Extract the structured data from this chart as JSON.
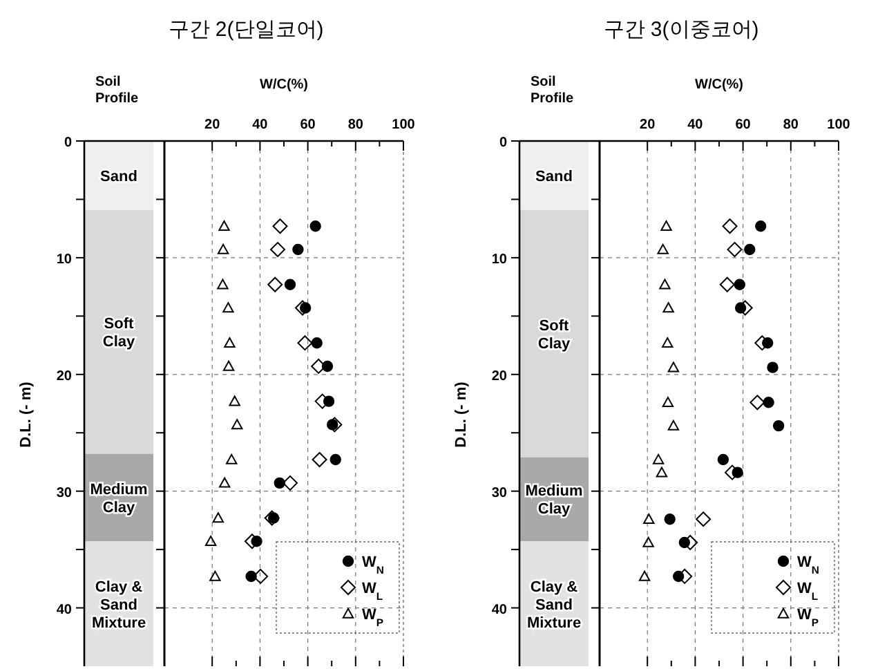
{
  "chart_data": [
    {
      "type": "bar",
      "stacked": true,
      "xlabel": "Soil Profile",
      "ylabel": "D.L. (- m)",
      "categories": [
        null
      ],
      "ylim": [
        45,
        0
      ],
      "yticks": [
        0,
        {
          "value": 5,
          "label": null
        },
        10,
        {
          "value": 15,
          "label": null
        },
        20,
        {
          "value": 25,
          "label": null
        },
        30,
        {
          "value": 35,
          "label": null
        },
        40
      ],
      "tick_labels": "y",
      "series": [
        {
          "name": "Sand",
          "color": "#efefef",
          "values": [
            5.9
          ]
        },
        {
          "name": "Soft Clay",
          "color": "#d9d9d9",
          "values": [
            20.9
          ]
        },
        {
          "name": "Medium Clay",
          "color": "#a9a9a9",
          "values": [
            7.5
          ]
        },
        {
          "name": "Clay & Sand Mixture",
          "color": "#e2e2e2",
          "values": [
            10.7
          ]
        }
      ]
    },
    {
      "type": "scatter",
      "title": "구간 2(단일코어)",
      "xlabel": "W/C(%)",
      "xlim": [
        0,
        100
      ],
      "xticks": [
        20,
        {
          "value": 30,
          "label": null
        },
        40,
        {
          "value": 50,
          "label": null
        },
        60,
        {
          "value": 70,
          "label": null
        },
        80,
        {
          "value": 90,
          "label": null
        },
        100
      ],
      "ylim": [
        45,
        0
      ],
      "yticks": [
        0,
        {
          "value": 5,
          "label": null
        },
        10,
        {
          "value": 15,
          "label": null
        },
        20,
        {
          "value": 25,
          "label": null
        },
        30,
        {
          "value": 35,
          "label": null
        },
        40
      ],
      "tick_labels": "x",
      "grid": true,
      "legend": "bottom right",
      "series": [
        {
          "name": "W$_{N}$",
          "color": "#000000",
          "marker": "circle",
          "x": [
            63.2,
            55.9,
            52.6,
            59.0,
            63.8,
            68.2,
            68.8,
            70.3,
            71.6,
            48.2,
            45.7,
            38.6,
            36.3
          ],
          "values": [
            7.3,
            9.3,
            12.3,
            14.3,
            17.3,
            19.3,
            22.3,
            24.3,
            27.3,
            29.3,
            32.3,
            34.3,
            37.3
          ]
        },
        {
          "name": "W$_{L}$",
          "color": "#000000",
          "marker": "diamond",
          "x": [
            48.4,
            47.4,
            46.3,
            57.8,
            58.8,
            64.5,
            66.1,
            71.2,
            64.9,
            52.6,
            45.0,
            36.7,
            40.2
          ],
          "values": [
            7.3,
            9.3,
            12.3,
            14.3,
            17.3,
            19.3,
            22.3,
            24.3,
            27.3,
            29.3,
            32.3,
            34.3,
            37.3
          ]
        },
        {
          "name": "W$_{P}$",
          "color": "#000000",
          "marker": "triangle",
          "x": [
            25.0,
            24.6,
            24.4,
            26.7,
            27.3,
            26.9,
            29.4,
            30.4,
            28.1,
            25.2,
            22.5,
            19.4,
            21.2
          ],
          "values": [
            7.3,
            9.3,
            12.3,
            14.3,
            17.3,
            19.3,
            22.3,
            24.3,
            27.3,
            29.3,
            32.3,
            34.3,
            37.3
          ]
        }
      ]
    },
    {
      "type": "bar",
      "stacked": true,
      "xlabel": "Soil Profile",
      "ylabel": "D.L. (- m)",
      "categories": [
        null
      ],
      "ylim": [
        45,
        0
      ],
      "yticks": [
        0,
        {
          "value": 5,
          "label": null
        },
        10,
        {
          "value": 15,
          "label": null
        },
        20,
        {
          "value": 25,
          "label": null
        },
        30,
        {
          "value": 35,
          "label": null
        },
        40
      ],
      "tick_labels": "y",
      "series": [
        {
          "name": "Sand",
          "color": "#efefef",
          "values": [
            5.9
          ]
        },
        {
          "name": "Soft Clay",
          "color": "#d9d9d9",
          "values": [
            21.2
          ]
        },
        {
          "name": "Medium Clay",
          "color": "#a9a9a9",
          "values": [
            7.2
          ]
        },
        {
          "name": "Clay & Sand Mixture",
          "color": "#e2e2e2",
          "values": [
            10.7
          ]
        }
      ]
    },
    {
      "type": "scatter",
      "title": "구간 3(이중코어)",
      "xlabel": "W/C(%)",
      "xlim": [
        0,
        100
      ],
      "xticks": [
        20,
        {
          "value": 30,
          "label": null
        },
        40,
        {
          "value": 50,
          "label": null
        },
        60,
        {
          "value": 70,
          "label": null
        },
        80,
        {
          "value": 90,
          "label": null
        },
        100
      ],
      "ylim": [
        45,
        0
      ],
      "yticks": [
        0,
        {
          "value": 5,
          "label": null
        },
        10,
        {
          "value": 15,
          "label": null
        },
        20,
        {
          "value": 25,
          "label": null
        },
        30,
        {
          "value": 35,
          "label": null
        },
        40
      ],
      "tick_labels": "x",
      "grid": true,
      "legend": "bottom right",
      "series": [
        {
          "name": "W$_{N}$",
          "color": "#000000",
          "marker": "circle",
          "x": [
            67.4,
            62.8,
            58.6,
            59.0,
            70.3,
            72.4,
            70.7,
            74.9,
            51.7,
            57.7,
            29.4,
            35.5,
            33.0
          ],
          "values": [
            7.3,
            9.3,
            12.3,
            14.3,
            17.3,
            19.4,
            22.4,
            24.4,
            27.3,
            28.4,
            32.4,
            34.4,
            37.3
          ]
        },
        {
          "name": "W$_{L}$",
          "color": "#000000",
          "marker": "diamond",
          "x": [
            54.5,
            56.5,
            53.4,
            60.9,
            68.0,
            66.0,
            55.5,
            43.4,
            37.9,
            35.6
          ],
          "values": [
            7.3,
            9.3,
            12.3,
            14.3,
            17.3,
            22.4,
            28.4,
            32.4,
            34.4,
            37.3
          ]
        },
        {
          "name": "W$_{P}$",
          "color": "#000000",
          "marker": "triangle",
          "x": [
            27.9,
            26.5,
            27.3,
            28.8,
            28.4,
            30.9,
            28.6,
            30.9,
            24.6,
            26.0,
            20.6,
            20.4,
            18.8
          ],
          "values": [
            7.3,
            9.3,
            12.3,
            14.3,
            17.3,
            19.4,
            22.4,
            24.4,
            27.3,
            28.4,
            32.4,
            34.4,
            37.3
          ]
        }
      ]
    }
  ]
}
